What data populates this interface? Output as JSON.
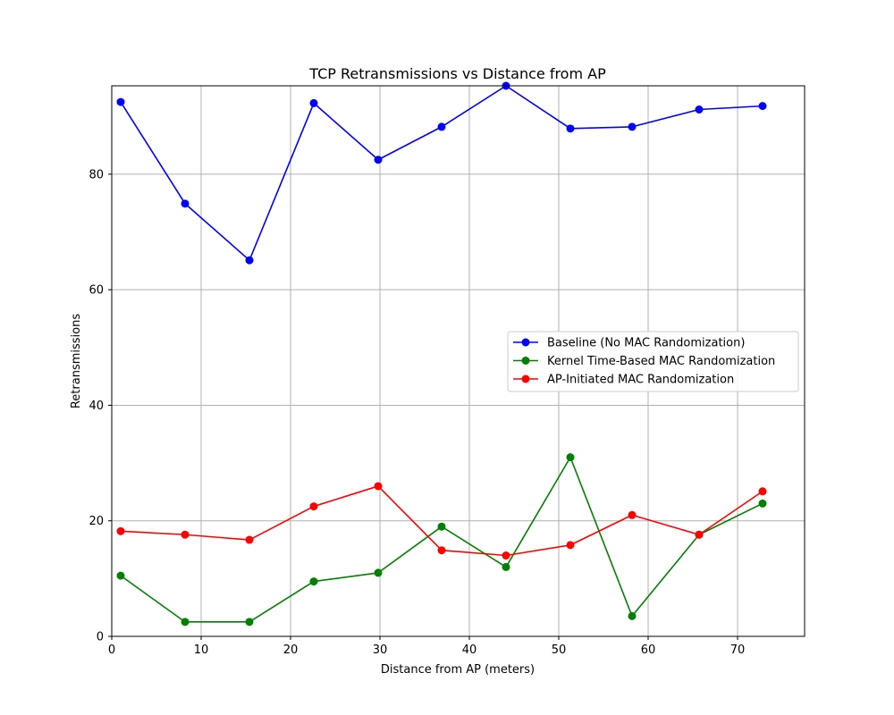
{
  "chart_data": {
    "type": "line",
    "title": "TCP Retransmissions vs Distance from AP",
    "xlabel": "Distance from AP (meters)",
    "ylabel": "Retransmissions",
    "xlim": [
      0,
      77.5
    ],
    "ylim": [
      0,
      95.3
    ],
    "xticks": [
      0,
      10,
      20,
      30,
      40,
      50,
      60,
      70
    ],
    "yticks": [
      0,
      20,
      40,
      60,
      80
    ],
    "grid": true,
    "legend_position": "center-right",
    "x": [
      1,
      8.2,
      15.4,
      22.6,
      29.8,
      36.9,
      44.1,
      51.3,
      58.2,
      65.7,
      72.8
    ],
    "series": [
      {
        "name": "Baseline (No MAC Randomization)",
        "color": "#0000ff",
        "values": [
          92.5,
          74.9,
          65.1,
          92.3,
          82.5,
          88.2,
          95.3,
          87.9,
          88.2,
          91.2,
          91.8
        ]
      },
      {
        "name": "Kernel Time-Based MAC Randomization",
        "color": "#008000",
        "values": [
          10.5,
          2.5,
          2.5,
          9.5,
          11.0,
          19.0,
          12.0,
          31.0,
          3.5,
          17.6,
          23.0
        ]
      },
      {
        "name": "AP-Initiated MAC Randomization",
        "color": "#ff0000",
        "values": [
          18.2,
          17.6,
          16.7,
          22.5,
          26.0,
          14.9,
          14.0,
          15.8,
          21.0,
          17.6,
          25.1
        ]
      }
    ]
  }
}
